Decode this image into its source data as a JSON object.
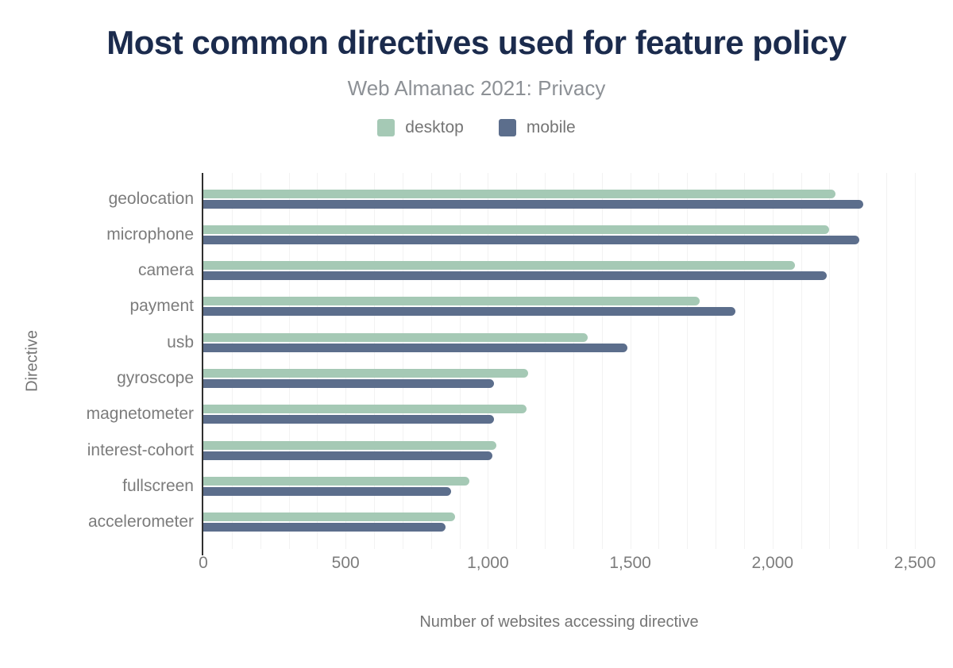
{
  "header": {
    "title": "Most common directives used for feature policy",
    "subtitle": "Web Almanac 2021: Privacy"
  },
  "legend": [
    {
      "label": "desktop",
      "color": "#a5c9b5"
    },
    {
      "label": "mobile",
      "color": "#5c6e8c"
    }
  ],
  "chart_data": {
    "type": "bar",
    "orientation": "horizontal",
    "title": "Most common directives used for feature policy",
    "subtitle": "Web Almanac 2021: Privacy",
    "xlabel": "Number of websites accessing directive",
    "ylabel": "Directive",
    "categories": [
      "geolocation",
      "microphone",
      "camera",
      "payment",
      "usb",
      "gyroscope",
      "magnetometer",
      "interest-cohort",
      "fullscreen",
      "accelerometer"
    ],
    "series": [
      {
        "name": "desktop",
        "color": "#a5c9b5",
        "values": [
          2220,
          2200,
          2080,
          1745,
          1350,
          1140,
          1135,
          1030,
          935,
          885
        ]
      },
      {
        "name": "mobile",
        "color": "#5c6e8c",
        "values": [
          2320,
          2305,
          2190,
          1870,
          1490,
          1020,
          1020,
          1015,
          870,
          850
        ]
      }
    ],
    "xlim": [
      0,
      2500
    ],
    "xticks": [
      "0",
      "500",
      "1,000",
      "1,500",
      "2,000",
      "2,500"
    ],
    "xtick_values": [
      0,
      500,
      1000,
      1500,
      2000,
      2500
    ],
    "grid": "vertical minor gridlines every 100, on",
    "legend_position": "top center"
  },
  "colors": {
    "title": "#1b2b4d",
    "desktop": "#a5c9b5",
    "mobile": "#5c6e8c",
    "axis_line": "#2f2f2f",
    "gridline": "#f2f2f2",
    "tick_text": "#7c7c7c"
  }
}
